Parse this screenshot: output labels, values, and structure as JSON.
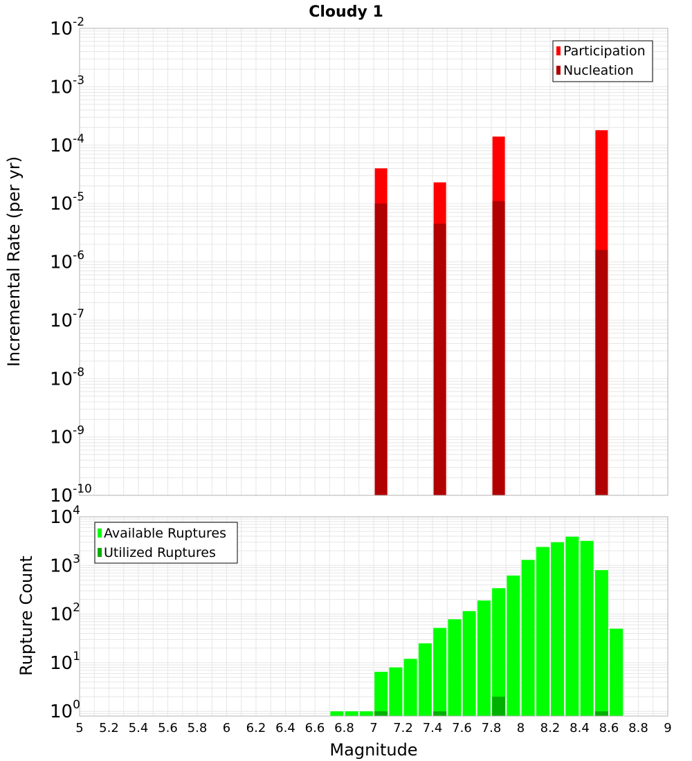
{
  "colors": {
    "participation": "#ff0000",
    "nucleation": "#b00000",
    "available": "#00ff00",
    "utilized": "#00b000",
    "grid": "#e6e6e6",
    "frame": "#b0b0b0"
  },
  "chart_data": [
    {
      "type": "bar",
      "title": "Cloudy 1",
      "xlabel": "",
      "ylabel": "Incremental Rate (per yr)",
      "yscale": "log",
      "ylim": [
        1e-10,
        0.01
      ],
      "xlim": [
        5,
        9
      ],
      "ytick_exponents": [
        "-10",
        "-9",
        "-8",
        "-7",
        "-6",
        "-5",
        "-4",
        "-3",
        "-2"
      ],
      "grid": true,
      "legend_position": "top-right",
      "series": [
        {
          "name": "Participation",
          "x": [
            7.05,
            7.45,
            7.85,
            8.55
          ],
          "values": [
            4e-05,
            2.3e-05,
            0.00014,
            0.00018
          ]
        },
        {
          "name": "Nucleation",
          "x": [
            7.05,
            7.45,
            7.85,
            8.55
          ],
          "values": [
            1e-05,
            4.5e-06,
            1.1e-05,
            1.6e-06
          ]
        }
      ]
    },
    {
      "type": "bar",
      "title": "",
      "xlabel": "Magnitude",
      "ylabel": "Rupture Count",
      "yscale": "log",
      "ylim": [
        0.8,
        10000
      ],
      "xlim": [
        5,
        9
      ],
      "ytick_exponents": [
        "0",
        "1",
        "2",
        "3",
        "4"
      ],
      "xticks": [
        "5",
        "5.2",
        "5.4",
        "5.6",
        "5.8",
        "6",
        "6.2",
        "6.4",
        "6.6",
        "6.8",
        "7",
        "7.2",
        "7.4",
        "7.6",
        "7.8",
        "8",
        "8.2",
        "8.4",
        "8.6",
        "8.8",
        "9"
      ],
      "grid": true,
      "legend_position": "top-left",
      "series": [
        {
          "name": "Available Ruptures",
          "x": [
            6.75,
            6.85,
            6.95,
            7.05,
            7.15,
            7.25,
            7.35,
            7.45,
            7.55,
            7.65,
            7.75,
            7.85,
            7.95,
            8.05,
            8.15,
            8.25,
            8.35,
            8.45,
            8.55,
            8.65
          ],
          "values": [
            1,
            1,
            1,
            6.5,
            8,
            12,
            25,
            52,
            78,
            115,
            190,
            340,
            620,
            1300,
            2400,
            3000,
            3900,
            3200,
            800,
            50
          ]
        },
        {
          "name": "Utilized Ruptures",
          "x": [
            7.05,
            7.45,
            7.85,
            8.55
          ],
          "values": [
            1,
            1,
            2,
            1
          ]
        }
      ]
    }
  ]
}
